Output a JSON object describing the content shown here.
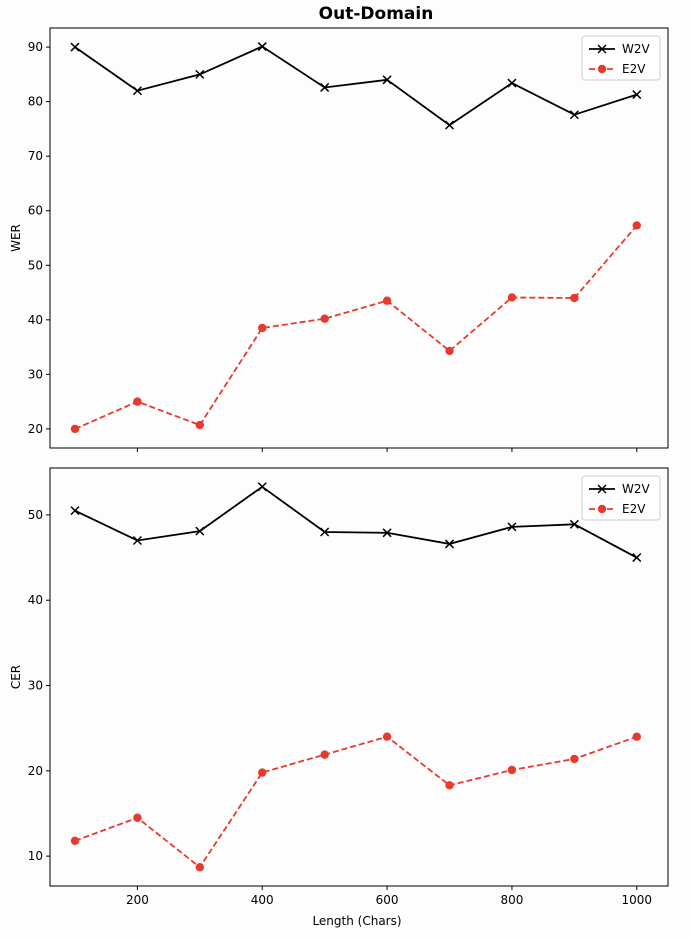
{
  "title": "Out-Domain",
  "xlabel": "Length (Chars)",
  "colors": {
    "w2v": "#000000",
    "e2v": "#e8392e"
  },
  "chart_data": [
    {
      "type": "line",
      "ylabel": "WER",
      "x": [
        100,
        200,
        300,
        400,
        500,
        600,
        700,
        800,
        900,
        1000
      ],
      "xlim": [
        60,
        1050
      ],
      "ylim": [
        16.5,
        93.5
      ],
      "xticks": [
        200,
        400,
        600,
        800,
        1000
      ],
      "xticks_labeled": false,
      "yticks": [
        20,
        30,
        40,
        50,
        60,
        70,
        80,
        90
      ],
      "legend": "top-right",
      "grid": false,
      "series": [
        {
          "name": "W2V",
          "marker": "x",
          "linestyle": "solid",
          "color": "#000000",
          "values": [
            90.0,
            82.0,
            85.0,
            90.1,
            82.6,
            84.0,
            75.7,
            83.4,
            77.6,
            81.3
          ]
        },
        {
          "name": "E2V",
          "marker": "o",
          "linestyle": "dashed",
          "color": "#e8392e",
          "values": [
            20.0,
            25.0,
            20.7,
            38.5,
            40.2,
            43.5,
            34.3,
            44.1,
            44.0,
            57.3
          ]
        }
      ]
    },
    {
      "type": "line",
      "ylabel": "CER",
      "x": [
        100,
        200,
        300,
        400,
        500,
        600,
        700,
        800,
        900,
        1000
      ],
      "xlim": [
        60,
        1050
      ],
      "ylim": [
        6.5,
        55.5
      ],
      "xticks": [
        200,
        400,
        600,
        800,
        1000
      ],
      "xticks_labeled": true,
      "yticks": [
        10,
        20,
        30,
        40,
        50
      ],
      "legend": "top-right",
      "grid": false,
      "series": [
        {
          "name": "W2V",
          "marker": "x",
          "linestyle": "solid",
          "color": "#000000",
          "values": [
            50.5,
            47.0,
            48.1,
            53.3,
            48.0,
            47.9,
            46.6,
            48.6,
            48.9,
            45.0
          ]
        },
        {
          "name": "E2V",
          "marker": "o",
          "linestyle": "dashed",
          "color": "#e8392e",
          "values": [
            11.8,
            14.5,
            8.7,
            19.8,
            21.9,
            24.0,
            18.3,
            20.1,
            21.4,
            24.0
          ]
        }
      ]
    }
  ]
}
